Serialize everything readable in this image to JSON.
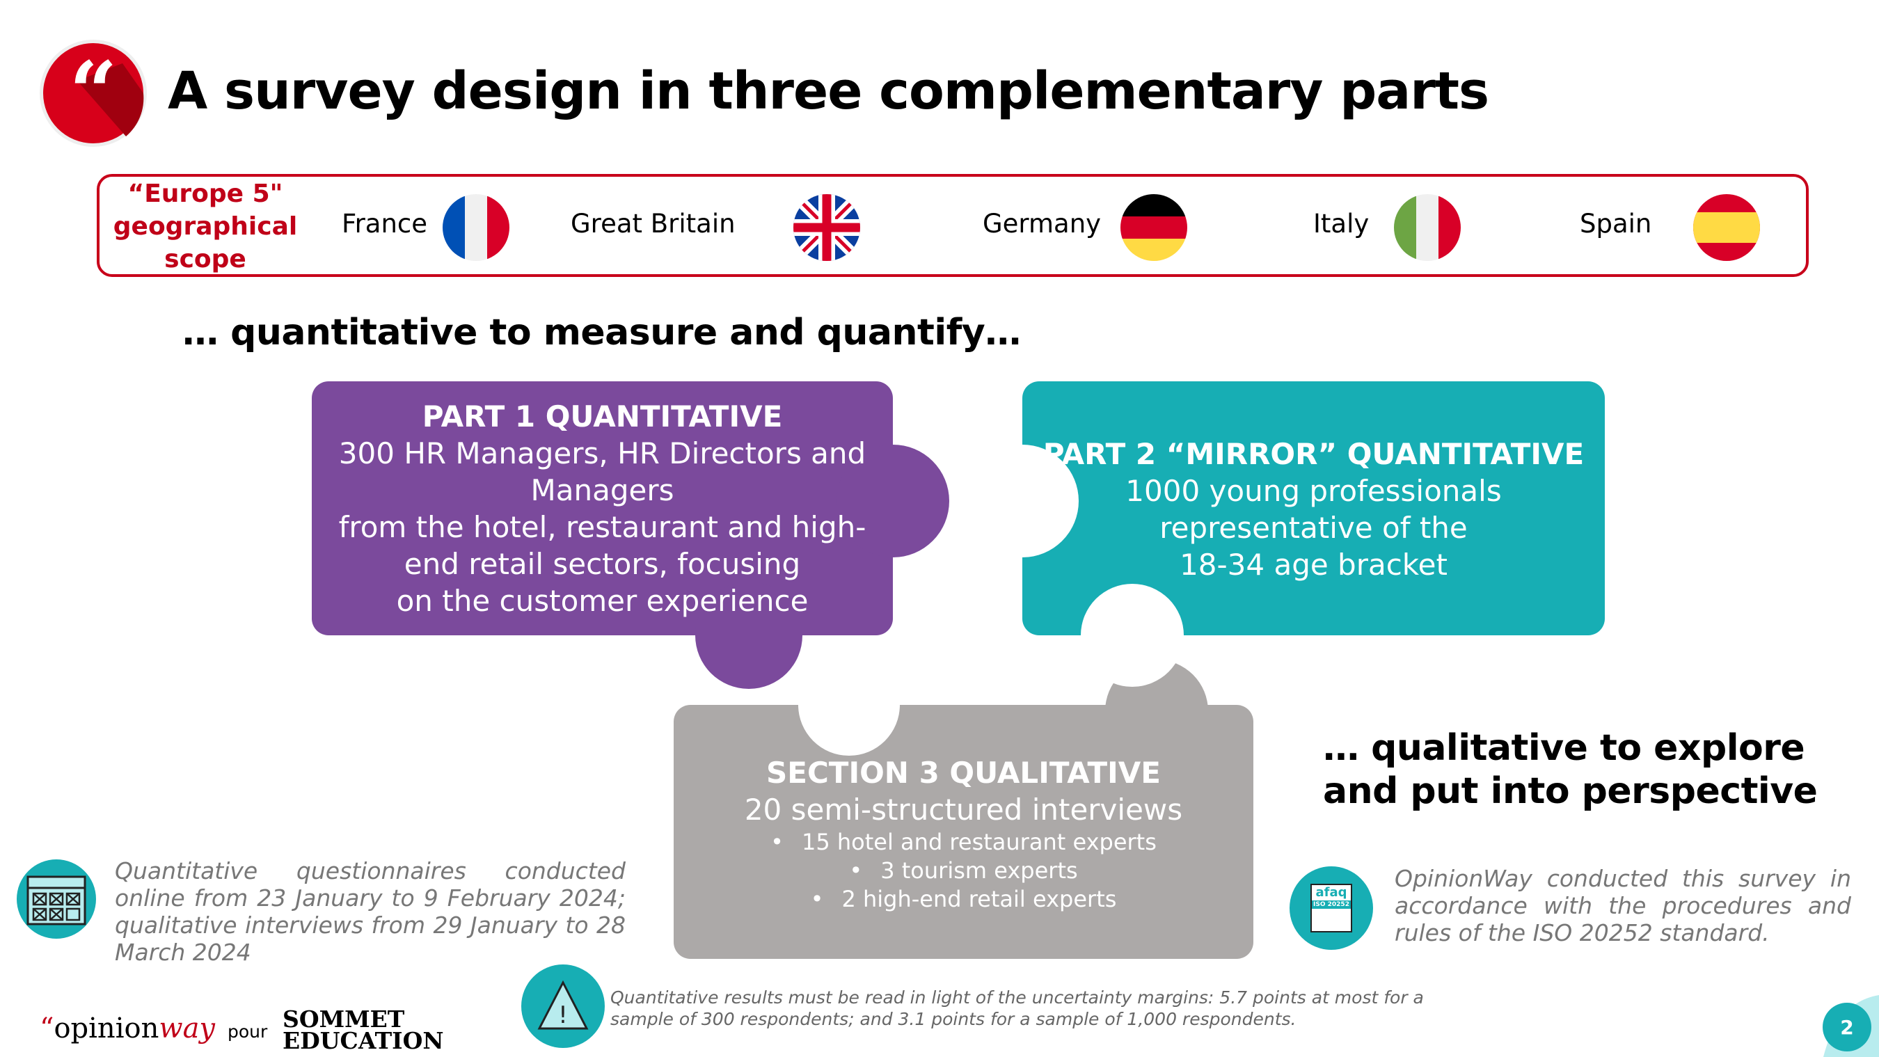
{
  "title": "A survey design in three complementary parts",
  "scope": {
    "label_lines": [
      "“Europe 5\"",
      "geographical",
      "scope"
    ],
    "countries": [
      {
        "name": "France",
        "flag": "france-flag"
      },
      {
        "name": "Great Britain",
        "flag": "uk-flag"
      },
      {
        "name": "Germany",
        "flag": "germany-flag"
      },
      {
        "name": "Italy",
        "flag": "italy-flag"
      },
      {
        "name": "Spain",
        "flag": "spain-flag"
      }
    ]
  },
  "quant_heading": "… quantitative to measure and quantify…",
  "qual_heading_lines": [
    "… qualitative to explore",
    "and put into perspective"
  ],
  "part1": {
    "title": "PART 1 QUANTITATIVE",
    "lines": [
      "300 HR Managers, HR Directors and",
      "Managers",
      "from the hotel, restaurant and high-",
      "end retail sectors, focusing",
      "on the customer experience"
    ],
    "color": "#7b4a9c"
  },
  "part2": {
    "title": "PART 2 “MIRROR” QUANTITATIVE",
    "lines": [
      "1000 young professionals",
      "representative of the",
      "18-34 age bracket"
    ],
    "color": "#17aeb4"
  },
  "part3": {
    "title": "SECTION 3 QUALITATIVE",
    "subtitle": "20 semi-structured interviews",
    "bullets": [
      "15 hotel and restaurant experts",
      "3 tourism experts",
      "2 high-end retail experts"
    ],
    "color": "#aca9a8"
  },
  "dates_note": "Quantitative questionnaires conducted online from 23 January to 9 February 2024; qualitative interviews from 29 January to 28 March 2024",
  "iso_note": "OpinionWay conducted this survey in accordance with the procedures and rules of the ISO 20252 standard.",
  "iso_badge": {
    "brand": "afaq",
    "standard": "ISO 20252"
  },
  "margin_note": "Quantitative results must be read in light of the uncertainty margins: 5.7 points at most for a sample of 300 respondents; and 3.1 points for a sample of 1,000 respondents.",
  "footer": {
    "brand_prefix": "“",
    "brand_a": "opinion",
    "brand_b": "way",
    "pour": "pour",
    "client_lines": [
      "SOMMET",
      "EDUCATION"
    ],
    "page": "2"
  },
  "colors": {
    "accent_red": "#c8001a",
    "teal": "#17aeb4"
  }
}
